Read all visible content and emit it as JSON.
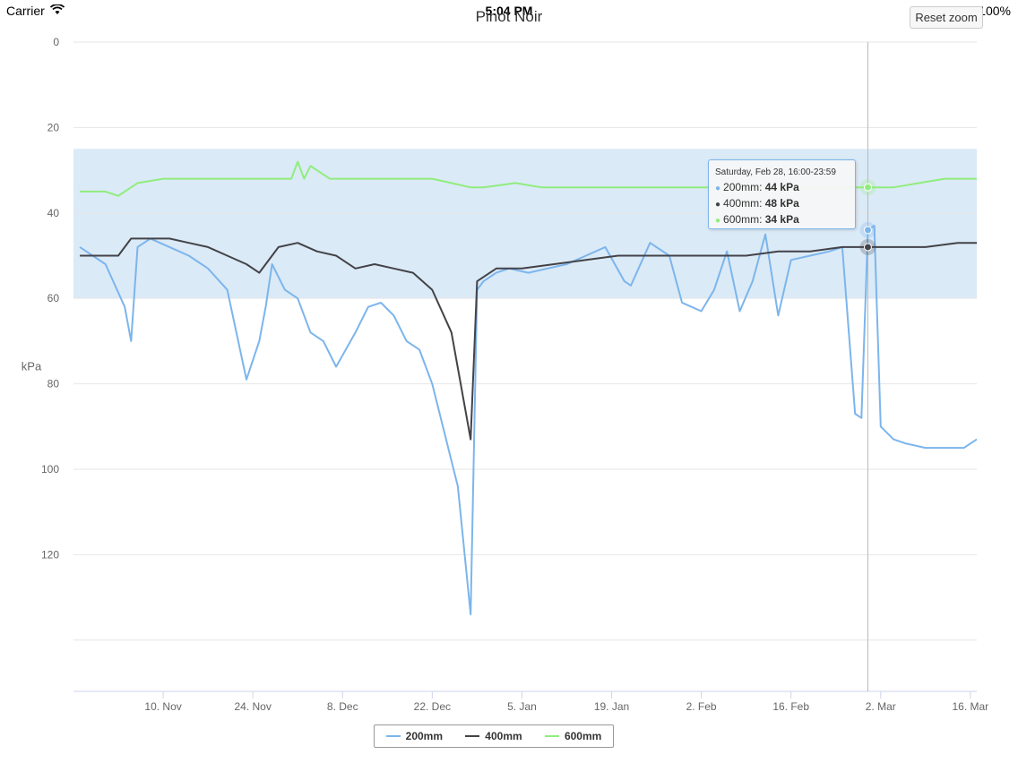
{
  "status_bar": {
    "carrier": "Carrier",
    "time": "5:04 PM",
    "battery": "100%"
  },
  "reset_zoom_label": "Reset zoom",
  "tooltip": {
    "header": "Saturday, Feb 28, 16:00-23:59",
    "rows": [
      {
        "name": "200mm",
        "value": "44 kPa",
        "color": "#7cb5ec"
      },
      {
        "name": "400mm",
        "value": "48 kPa",
        "color": "#434348"
      },
      {
        "name": "600mm",
        "value": "34 kPa",
        "color": "#90ed7d"
      }
    ]
  },
  "chart_data": {
    "type": "line",
    "title": "Pinot Noir",
    "ylabel": "kPa",
    "y_reversed": true,
    "ylim": [
      0,
      152
    ],
    "y_ticks": [
      0,
      20,
      40,
      60,
      80,
      100,
      120
    ],
    "x_ticks": [
      "10. Nov",
      "24. Nov",
      "8. Dec",
      "22. Dec",
      "5. Jan",
      "19. Jan",
      "2. Feb",
      "16. Feb",
      "2. Mar",
      "16. Mar"
    ],
    "plot_band": {
      "from": 25,
      "to": 60,
      "color": "#dbeaf7"
    },
    "crosshair_x": "28. Feb",
    "grid": true,
    "legend_position": "bottom-center",
    "series": [
      {
        "name": "200mm",
        "color": "#7cb5ec",
        "x": [
          "2014-10-28",
          "2014-11-01",
          "2014-11-04",
          "2014-11-05",
          "2014-11-06",
          "2014-11-08",
          "2014-11-11",
          "2014-11-14",
          "2014-11-17",
          "2014-11-20",
          "2014-11-23",
          "2014-11-25",
          "2014-11-26",
          "2014-11-27",
          "2014-11-29",
          "2014-12-01",
          "2014-12-03",
          "2014-12-05",
          "2014-12-07",
          "2014-12-10",
          "2014-12-12",
          "2014-12-14",
          "2014-12-16",
          "2014-12-18",
          "2014-12-20",
          "2014-12-22",
          "2014-12-24",
          "2014-12-26",
          "2014-12-28",
          "2014-12-29",
          "2014-12-30",
          "2015-01-01",
          "2015-01-03",
          "2015-01-06",
          "2015-01-09",
          "2015-01-12",
          "2015-01-15",
          "2015-01-18",
          "2015-01-21",
          "2015-01-22",
          "2015-01-25",
          "2015-01-28",
          "2015-01-30",
          "2015-02-02",
          "2015-02-04",
          "2015-02-06",
          "2015-02-08",
          "2015-02-10",
          "2015-02-12",
          "2015-02-14",
          "2015-02-16",
          "2015-02-19",
          "2015-02-22",
          "2015-02-24",
          "2015-02-26",
          "2015-02-27",
          "2015-02-28",
          "2015-03-01",
          "2015-03-02",
          "2015-03-04",
          "2015-03-06",
          "2015-03-09",
          "2015-03-12",
          "2015-03-15",
          "2015-03-17"
        ],
        "values": [
          48,
          52,
          62,
          70,
          48,
          46,
          48,
          50,
          53,
          58,
          79,
          70,
          62,
          52,
          58,
          60,
          68,
          70,
          76,
          68,
          62,
          61,
          64,
          70,
          72,
          80,
          92,
          104,
          134,
          58,
          56,
          54,
          53,
          54,
          53,
          52,
          50,
          48,
          56,
          57,
          47,
          50,
          61,
          63,
          58,
          49,
          63,
          56,
          45,
          64,
          51,
          50,
          49,
          48,
          87,
          88,
          44,
          43,
          90,
          93,
          94,
          95,
          95,
          95,
          93
        ]
      },
      {
        "name": "400mm",
        "color": "#434348",
        "x": [
          "2014-10-28",
          "2014-11-03",
          "2014-11-05",
          "2014-11-08",
          "2014-11-11",
          "2014-11-14",
          "2014-11-17",
          "2014-11-20",
          "2014-11-23",
          "2014-11-25",
          "2014-11-28",
          "2014-12-01",
          "2014-12-04",
          "2014-12-07",
          "2014-12-10",
          "2014-12-13",
          "2014-12-16",
          "2014-12-19",
          "2014-12-22",
          "2014-12-25",
          "2014-12-28",
          "2014-12-29",
          "2014-12-30",
          "2015-01-01",
          "2015-01-05",
          "2015-01-10",
          "2015-01-15",
          "2015-01-20",
          "2015-01-25",
          "2015-01-30",
          "2015-02-04",
          "2015-02-09",
          "2015-02-14",
          "2015-02-19",
          "2015-02-24",
          "2015-02-28",
          "2015-03-04",
          "2015-03-09",
          "2015-03-14",
          "2015-03-17"
        ],
        "values": [
          50,
          50,
          46,
          46,
          46,
          47,
          48,
          50,
          52,
          54,
          48,
          47,
          49,
          50,
          53,
          52,
          53,
          54,
          58,
          68,
          93,
          56,
          55,
          53,
          53,
          52,
          51,
          50,
          50,
          50,
          50,
          50,
          49,
          49,
          48,
          48,
          48,
          48,
          47,
          47
        ]
      },
      {
        "name": "600mm",
        "color": "#90ed7d",
        "x": [
          "2014-10-28",
          "2014-11-01",
          "2014-11-03",
          "2014-11-06",
          "2014-11-10",
          "2014-11-15",
          "2014-11-20",
          "2014-11-25",
          "2014-11-30",
          "2014-12-01",
          "2014-12-02",
          "2014-12-03",
          "2014-12-06",
          "2014-12-12",
          "2014-12-18",
          "2014-12-22",
          "2014-12-25",
          "2014-12-28",
          "2014-12-30",
          "2015-01-04",
          "2015-01-08",
          "2015-01-14",
          "2015-01-20",
          "2015-01-26",
          "2015-02-01",
          "2015-02-07",
          "2015-02-13",
          "2015-02-19",
          "2015-02-24",
          "2015-02-28",
          "2015-03-04",
          "2015-03-08",
          "2015-03-12",
          "2015-03-17"
        ],
        "values": [
          35,
          35,
          36,
          33,
          32,
          32,
          32,
          32,
          32,
          28,
          32,
          29,
          32,
          32,
          32,
          32,
          33,
          34,
          34,
          33,
          34,
          34,
          34,
          34,
          34,
          34,
          34,
          34,
          34,
          34,
          34,
          33,
          32,
          32
        ]
      }
    ]
  }
}
